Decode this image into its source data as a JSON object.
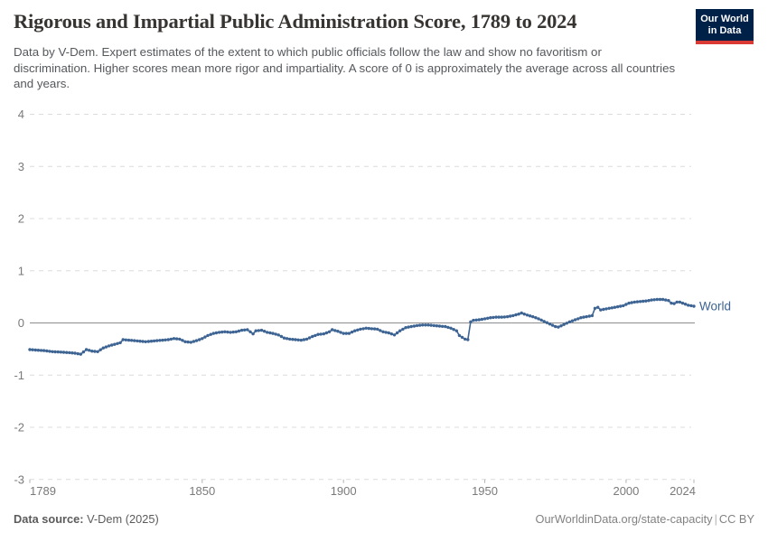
{
  "header": {
    "title": "Rigorous and Impartial Public Administration Score, 1789 to 2024",
    "subtitle": "Data by V-Dem. Expert estimates of the extent to which public officials follow the law and show no favoritism or discrimination. Higher scores mean more rigor and impartiality. A score of 0 is approximately the average across all countries and years.",
    "logo": {
      "line1": "Our World",
      "line2": "in Data"
    }
  },
  "footer": {
    "source_label": "Data source:",
    "source_value": " V-Dem (2025)",
    "link": "OurWorldinData.org/state-capacity",
    "separator": "|",
    "license": "CC BY"
  },
  "colors": {
    "series_blue": "#3d6493",
    "grid": "#dcdcdc",
    "zero_line": "#8e8e8e",
    "tick_label": "#7a7a7a",
    "tick_mark": "#b3b3b3",
    "logo_bg": "#002147",
    "logo_stripe": "#d93a34"
  },
  "chart_data": {
    "type": "line",
    "title": "Rigorous and Impartial Public Administration Score, 1789 to 2024",
    "xlabel": "",
    "ylabel": "",
    "xlim": [
      1789,
      2024
    ],
    "ylim": [
      -3,
      4
    ],
    "x_ticks": [
      1789,
      1850,
      1900,
      1950,
      2000,
      2024
    ],
    "y_ticks": [
      4,
      3,
      2,
      1,
      0,
      -1,
      -2,
      -3
    ],
    "grid": "horizontal-dashed",
    "zero_line": true,
    "legend_position": "end-of-line",
    "markers": "yearly-dots",
    "series": [
      {
        "name": "World",
        "color": "#3d6493",
        "points": [
          [
            1789,
            -0.51
          ],
          [
            1791,
            -0.52
          ],
          [
            1794,
            -0.53
          ],
          [
            1797,
            -0.55
          ],
          [
            1800,
            -0.56
          ],
          [
            1803,
            -0.57
          ],
          [
            1805,
            -0.58
          ],
          [
            1807,
            -0.6
          ],
          [
            1809,
            -0.51
          ],
          [
            1811,
            -0.54
          ],
          [
            1813,
            -0.55
          ],
          [
            1815,
            -0.48
          ],
          [
            1817,
            -0.44
          ],
          [
            1819,
            -0.41
          ],
          [
            1821,
            -0.38
          ],
          [
            1822,
            -0.32
          ],
          [
            1824,
            -0.33
          ],
          [
            1826,
            -0.34
          ],
          [
            1828,
            -0.35
          ],
          [
            1830,
            -0.36
          ],
          [
            1832,
            -0.35
          ],
          [
            1834,
            -0.34
          ],
          [
            1836,
            -0.33
          ],
          [
            1838,
            -0.32
          ],
          [
            1840,
            -0.3
          ],
          [
            1842,
            -0.31
          ],
          [
            1844,
            -0.36
          ],
          [
            1846,
            -0.37
          ],
          [
            1848,
            -0.34
          ],
          [
            1850,
            -0.3
          ],
          [
            1852,
            -0.24
          ],
          [
            1854,
            -0.2
          ],
          [
            1856,
            -0.18
          ],
          [
            1858,
            -0.17
          ],
          [
            1860,
            -0.18
          ],
          [
            1862,
            -0.17
          ],
          [
            1864,
            -0.14
          ],
          [
            1866,
            -0.13
          ],
          [
            1868,
            -0.21
          ],
          [
            1869,
            -0.15
          ],
          [
            1871,
            -0.14
          ],
          [
            1873,
            -0.18
          ],
          [
            1875,
            -0.2
          ],
          [
            1877,
            -0.23
          ],
          [
            1879,
            -0.29
          ],
          [
            1881,
            -0.31
          ],
          [
            1883,
            -0.32
          ],
          [
            1885,
            -0.33
          ],
          [
            1887,
            -0.31
          ],
          [
            1889,
            -0.26
          ],
          [
            1891,
            -0.22
          ],
          [
            1893,
            -0.21
          ],
          [
            1895,
            -0.17
          ],
          [
            1896,
            -0.13
          ],
          [
            1898,
            -0.16
          ],
          [
            1900,
            -0.2
          ],
          [
            1902,
            -0.2
          ],
          [
            1904,
            -0.15
          ],
          [
            1906,
            -0.12
          ],
          [
            1908,
            -0.1
          ],
          [
            1910,
            -0.11
          ],
          [
            1912,
            -0.12
          ],
          [
            1914,
            -0.17
          ],
          [
            1916,
            -0.19
          ],
          [
            1918,
            -0.23
          ],
          [
            1920,
            -0.15
          ],
          [
            1922,
            -0.09
          ],
          [
            1924,
            -0.07
          ],
          [
            1926,
            -0.05
          ],
          [
            1928,
            -0.04
          ],
          [
            1930,
            -0.04
          ],
          [
            1932,
            -0.05
          ],
          [
            1934,
            -0.06
          ],
          [
            1936,
            -0.07
          ],
          [
            1938,
            -0.1
          ],
          [
            1940,
            -0.15
          ],
          [
            1941,
            -0.24
          ],
          [
            1943,
            -0.31
          ],
          [
            1944,
            -0.32
          ],
          [
            1945,
            0.02
          ],
          [
            1946,
            0.05
          ],
          [
            1948,
            0.06
          ],
          [
            1950,
            0.08
          ],
          [
            1952,
            0.1
          ],
          [
            1954,
            0.11
          ],
          [
            1956,
            0.11
          ],
          [
            1958,
            0.12
          ],
          [
            1960,
            0.14
          ],
          [
            1962,
            0.17
          ],
          [
            1963,
            0.19
          ],
          [
            1965,
            0.15
          ],
          [
            1967,
            0.12
          ],
          [
            1969,
            0.08
          ],
          [
            1971,
            0.03
          ],
          [
            1973,
            -0.02
          ],
          [
            1975,
            -0.07
          ],
          [
            1976,
            -0.08
          ],
          [
            1978,
            -0.03
          ],
          [
            1980,
            0.02
          ],
          [
            1982,
            0.06
          ],
          [
            1984,
            0.1
          ],
          [
            1986,
            0.12
          ],
          [
            1988,
            0.14
          ],
          [
            1989,
            0.28
          ],
          [
            1990,
            0.3
          ],
          [
            1991,
            0.25
          ],
          [
            1993,
            0.27
          ],
          [
            1995,
            0.29
          ],
          [
            1997,
            0.31
          ],
          [
            1999,
            0.33
          ],
          [
            2001,
            0.38
          ],
          [
            2003,
            0.4
          ],
          [
            2005,
            0.41
          ],
          [
            2007,
            0.42
          ],
          [
            2009,
            0.44
          ],
          [
            2011,
            0.45
          ],
          [
            2013,
            0.45
          ],
          [
            2015,
            0.43
          ],
          [
            2016,
            0.38
          ],
          [
            2017,
            0.37
          ],
          [
            2018,
            0.4
          ],
          [
            2019,
            0.4
          ],
          [
            2020,
            0.38
          ],
          [
            2021,
            0.36
          ],
          [
            2022,
            0.34
          ],
          [
            2023,
            0.33
          ],
          [
            2024,
            0.32
          ]
        ]
      }
    ]
  }
}
